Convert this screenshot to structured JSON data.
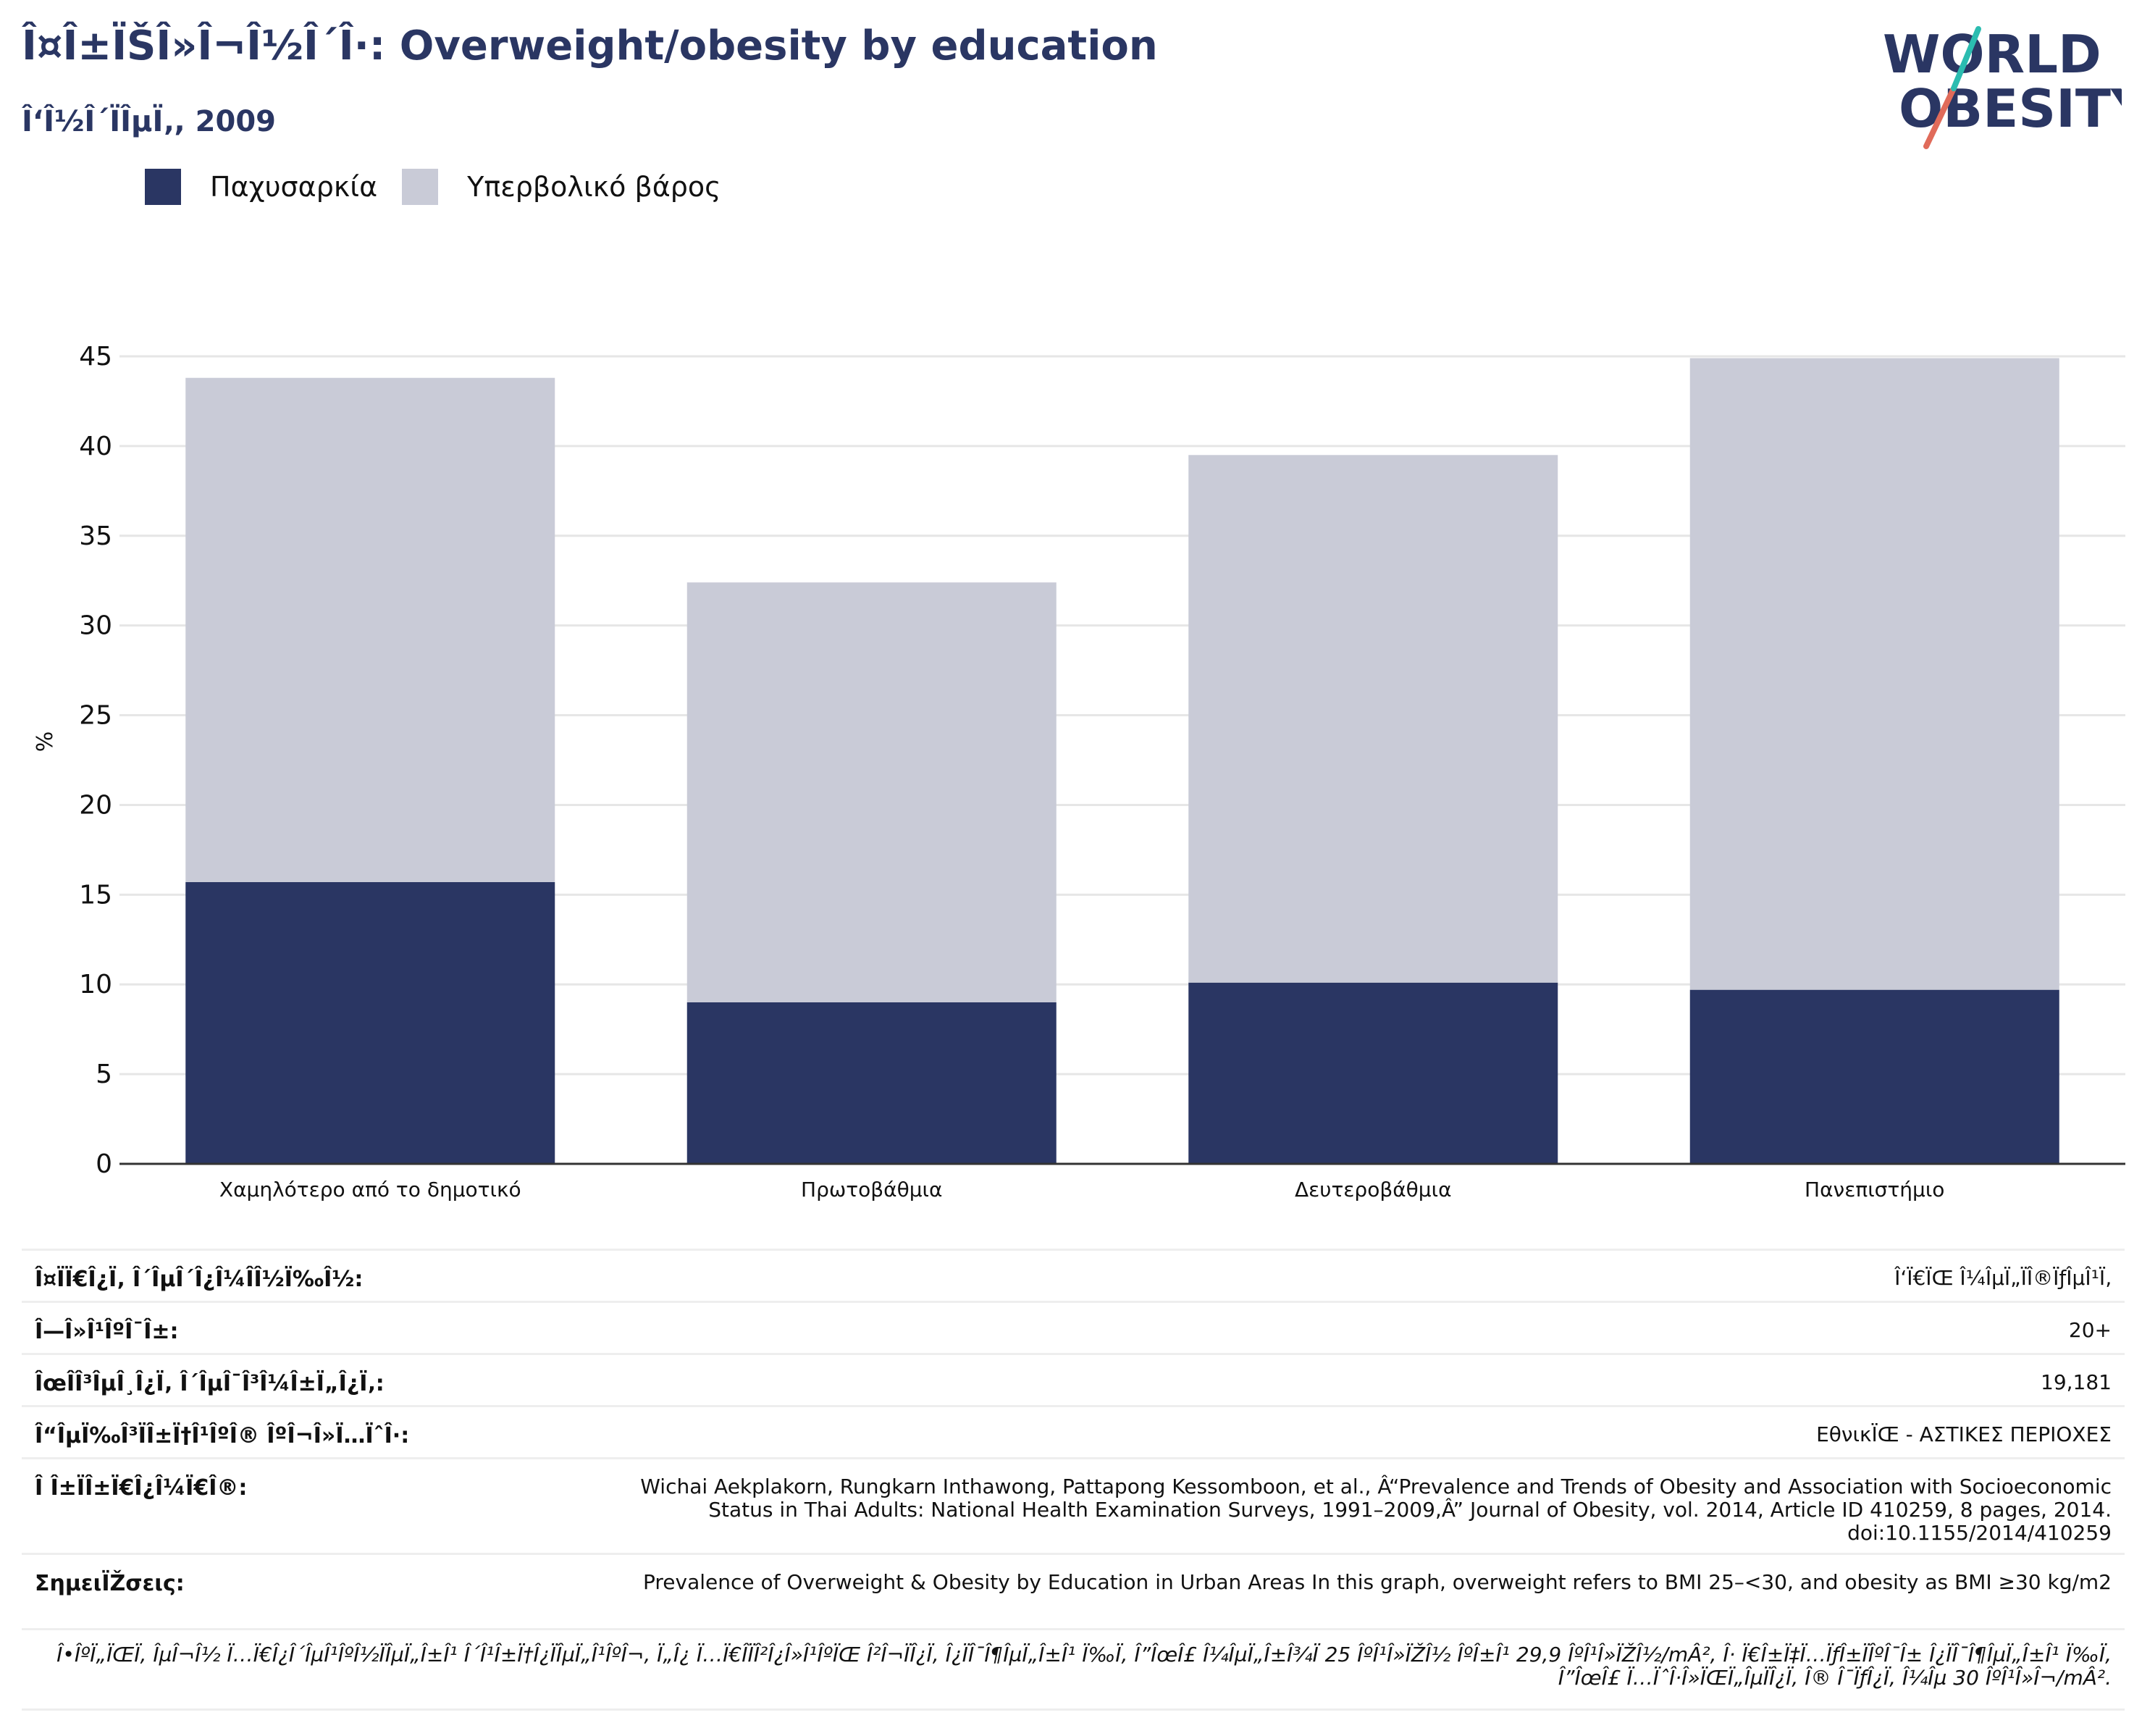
{
  "header": {
    "title": "Î¤Î±ÏŠÎ»Î¬Î½Î´Î·: Overweight/obesity by education",
    "subtitle": "Î‘Î½Î´ÏÎµÏ‚, 2009"
  },
  "logo": {
    "line1": "WORLD",
    "line2": "OBESITY"
  },
  "colors": {
    "obesity": "#2a3663",
    "overweight": "#c9cbd7",
    "title": "#2a3663",
    "logo_teal": "#2bbcb0",
    "logo_coral": "#e06b5a"
  },
  "legend": [
    {
      "label": "Παχυσαρκία",
      "color": "#2a3663"
    },
    {
      "label": "Υπερβολικό βάρος",
      "color": "#c9cbd7"
    }
  ],
  "chart_data": {
    "type": "bar",
    "stacked": true,
    "title": "",
    "xlabel": "",
    "ylabel": "%",
    "ylim": [
      0,
      45
    ],
    "yticks": [
      0,
      5,
      10,
      15,
      20,
      25,
      30,
      35,
      40,
      45
    ],
    "grid": true,
    "legend_position": "top-left",
    "categories": [
      "Χαμηλότερο από το δημοτικό",
      "Πρωτοβάθμια",
      "Δευτεροβάθμια",
      "Πανεπιστήμιο"
    ],
    "series": [
      {
        "name": "Παχυσαρκία",
        "values": [
          15.7,
          9.0,
          10.1,
          9.7
        ]
      },
      {
        "name": "Υπερβολικό βάρος",
        "values": [
          28.1,
          23.4,
          29.4,
          35.2
        ]
      }
    ]
  },
  "table": {
    "rows": [
      {
        "label": "Î¤ÏÏ€Î¿Ï‚ Î´ÎµÎ´Î¿Î¼Î­Î½Ï‰Î½:",
        "value": "Î‘Ï€ÏŒ Î¼ÎµÏ„ÏÎ®ÏƒÎµÎ¹Ï‚"
      },
      {
        "label": "Î—Î»Î¹ÎºÎ¯Î±:",
        "value": "20+"
      },
      {
        "label": "ÎœÎ­Î³ÎµÎ¸Î¿Ï‚ Î´ÎµÎ¯Î³Î¼Î±Ï„Î¿Ï‚:",
        "value": "19,181"
      },
      {
        "label": "Î“ÎµÏ‰Î³ÏÎ±Ï†Î¹ÎºÎ® ÎºÎ¬Î»Ï…ÏˆÎ·:",
        "value": "ΕθνικÏŒ - ΑΣΤΙΚΕΣ ΠΕΡΙΟΧΕΣ"
      },
      {
        "label": "Î Î±ÏÎ±Ï€Î¿Î¼Ï€Î®:",
        "value": "Wichai Aekplakorn, Rungkarn Inthawong, Pattapong Kessomboon, et al., Â“Prevalence and Trends of Obesity and Association with Socioeconomic Status in Thai Adults: National Health Examination Surveys, 1991–2009,Â” Journal of Obesity, vol. 2014, Article ID 410259, 8 pages, 2014. doi:10.1155/2014/410259"
      },
      {
        "label": "ΣημειÏŽσεις:",
        "value": "Prevalence of Overweight & Obesity by Education in Urban Areas In this graph, overweight refers to BMI 25–<30, and obesity as BMI ≥30 kg/m2"
      }
    ],
    "note": "Î•ÎºÏ„ÏŒÏ‚ ÎµÎ¬Î½ Ï…Ï€Î¿Î´ÎµÎ¹ÎºÎ½ÏÎµÏ„Î±Î¹ Î´Î¹Î±Ï†Î¿ÏÎµÏ„Î¹ÎºÎ¬, Ï„Î¿ Ï…Ï€Î­ÏÎ²Î¿Î»Î¹ÎºÏŒ Î²Î¬ÏÎ¿Ï‚ Î¿ÏÎ¯Î¶ÎµÏ„Î±Î¹ Ï‰Ï‚ Î”ÎœÎ£ Î¼ÎµÏ„Î±Î¾Ï 25 ÎºÎ¹Î»ÏŽÎ½ ÎºÎ±Î¹ 29,9 ÎºÎ¹Î»ÏŽÎ½/mÂ², Î· Ï€Î±Ï‡Ï…ÏƒÎ±ÏÎºÎ¯Î± Î¿ÏÎ¯Î¶ÎµÏ„Î±Î¹ Ï‰Ï‚ Î”ÎœÎ£ Ï…ÏˆÎ·Î»ÏŒÏ„ÎµÏÎ¿Ï‚ Î® Î¯ÏƒÎ¿Ï‚ Î¼Îµ 30 ÎºÎ¹Î»Î¬/mÂ²."
  }
}
